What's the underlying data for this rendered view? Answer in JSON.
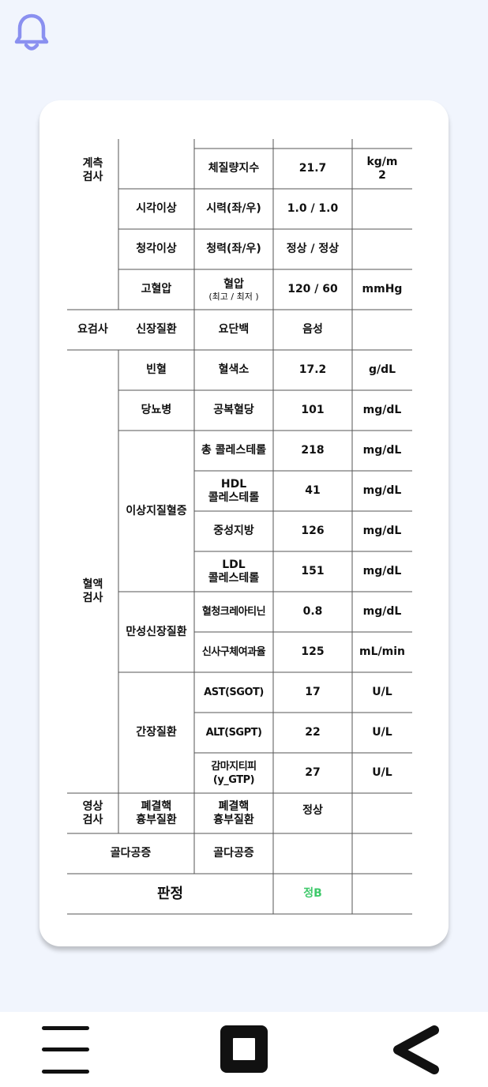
{
  "icons": {
    "bell": "bell-icon",
    "menu": "menu-icon",
    "home": "square-home-icon",
    "back": "chevron-left-back-icon"
  },
  "colors": {
    "bell": "#8a90f0",
    "verdict": "#3ec96a",
    "background": "#f1f5fd"
  },
  "table": {
    "categories": {
      "measurement": "계측\n검사",
      "urine": "요검사",
      "blood": "혈액\n검사",
      "imaging": "영상\n검사",
      "osteoporosis": "골다공증"
    },
    "diseases": {
      "vision": "시각이상",
      "hearing": "청각이상",
      "hypertension": "고혈압",
      "kidney_urine": "신장질환",
      "anemia": "빈혈",
      "diabetes": "당뇨병",
      "dyslipidemia": "이상지질혈증",
      "chronic_kidney": "만성신장질환",
      "liver": "간장질환",
      "tb": "폐결핵\n흉부질환"
    },
    "rows": [
      {
        "item": "체질량지수",
        "value": "21.7",
        "unit": "kg/m\n2"
      },
      {
        "item": "시력(좌/우)",
        "value": "1.0 / 1.0",
        "unit": ""
      },
      {
        "item": "청력(좌/우)",
        "value": "정상 / 정상",
        "unit": ""
      },
      {
        "item": "혈압",
        "item_sub": "(최고 / 최저 )",
        "value": "120 / 60",
        "unit": "mmHg"
      },
      {
        "item": "요단백",
        "value": "음성",
        "unit": ""
      },
      {
        "item": "혈색소",
        "value": "17.2",
        "unit": "g/dL"
      },
      {
        "item": "공복혈당",
        "value": "101",
        "unit": "mg/dL"
      },
      {
        "item": "총 콜레스테롤",
        "value": "218",
        "unit": "mg/dL"
      },
      {
        "item": "HDL\n콜레스테롤",
        "value": "41",
        "unit": "mg/dL"
      },
      {
        "item": "중성지방",
        "value": "126",
        "unit": "mg/dL"
      },
      {
        "item": "LDL\n콜레스테롤",
        "value": "151",
        "unit": "mg/dL"
      },
      {
        "item": "혈청크레아티닌",
        "value": "0.8",
        "unit": "mg/dL"
      },
      {
        "item": "신사구체여과율",
        "value": "125",
        "unit": "mL/min"
      },
      {
        "item": "AST(SGOT)",
        "value": "17",
        "unit": "U/L"
      },
      {
        "item": "ALT(SGPT)",
        "value": "22",
        "unit": "U/L"
      },
      {
        "item": "감마지티피\n(y_GTP)",
        "value": "27",
        "unit": "U/L"
      },
      {
        "item": "폐결핵\n흉부질환",
        "value": "정상",
        "unit": ""
      },
      {
        "item": "골다공증",
        "value": "",
        "unit": ""
      }
    ],
    "verdict_label": "판정",
    "verdict_value": "정B"
  }
}
